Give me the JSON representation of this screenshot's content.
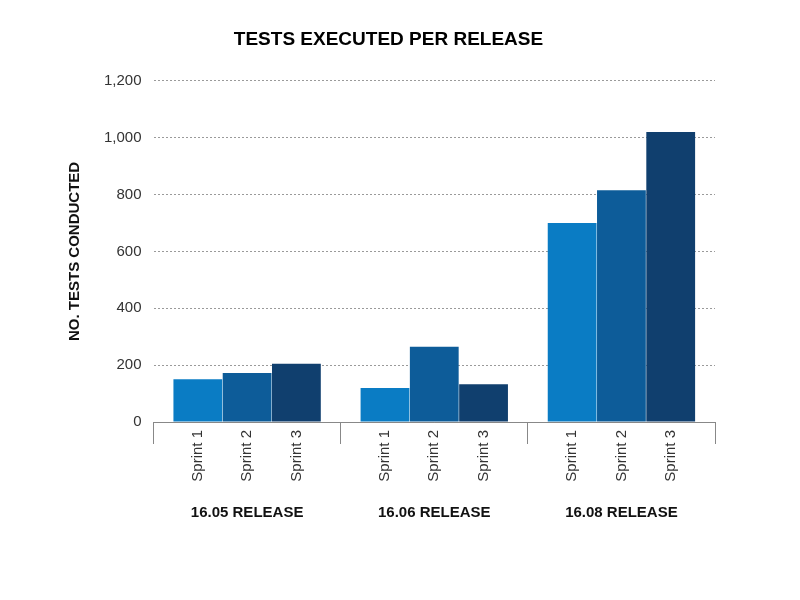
{
  "chart_data": {
    "type": "bar",
    "title": "TESTS EXECUTED PER RELEASE",
    "y_label": "NO. TESTS CONDUCTED",
    "categories": [
      "16.05 RELEASE",
      "16.06 RELEASE",
      "16.08 RELEASE"
    ],
    "series": [
      {
        "name": "Sprint 1",
        "color": "#0a7cc4",
        "values": [
          150,
          120,
          700
        ]
      },
      {
        "name": "Sprint 2",
        "color": "#0d5c99",
        "values": [
          172,
          265,
          815
        ]
      },
      {
        "name": "Sprint 3",
        "color": "#103f6e",
        "values": [
          205,
          133,
          1020
        ]
      }
    ],
    "ylim": [
      0,
      1200
    ],
    "yticks": [
      0,
      200,
      400,
      600,
      800,
      1000,
      1200
    ],
    "grid": true
  }
}
